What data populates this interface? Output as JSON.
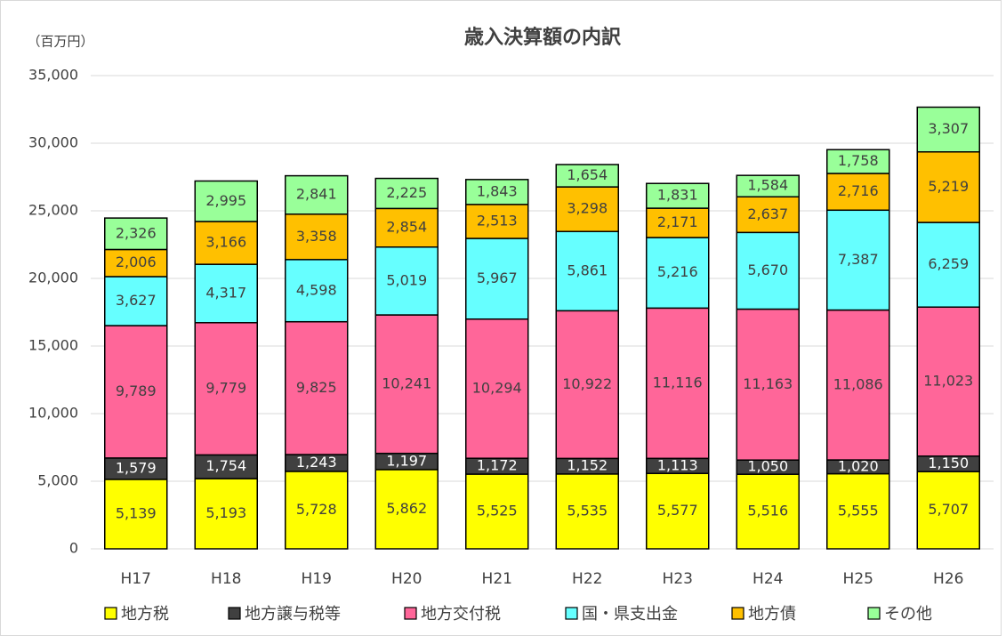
{
  "chart_data": {
    "type": "stacked_bar",
    "title": "歳入決算額の内訳",
    "unit": "（百万円）",
    "categories": [
      "H17",
      "H18",
      "H19",
      "H20",
      "H21",
      "H22",
      "H23",
      "H24",
      "H25",
      "H26"
    ],
    "series": [
      {
        "name": "地方税",
        "color": "#ffff00",
        "values": [
          5139,
          5193,
          5728,
          5862,
          5525,
          5535,
          5577,
          5516,
          5555,
          5707
        ],
        "value_labels": [
          "5,139",
          "5,193",
          "5,728",
          "5,862",
          "5,525",
          "5,535",
          "5,577",
          "5,516",
          "5,555",
          "5,707"
        ]
      },
      {
        "name": "地方譲与税等",
        "color": "#404040",
        "values": [
          1579,
          1754,
          1243,
          1197,
          1172,
          1152,
          1113,
          1050,
          1020,
          1150
        ],
        "value_labels": [
          "1,579",
          "1,754",
          "1,243",
          "1,197",
          "1,172",
          "1,152",
          "1,113",
          "1,050",
          "1,020",
          "1,150"
        ]
      },
      {
        "name": "地方交付税",
        "color": "#ff6699",
        "values": [
          9789,
          9779,
          9825,
          10241,
          10294,
          10922,
          11116,
          11163,
          11086,
          11023
        ],
        "value_labels": [
          "9,789",
          "9,779",
          "9,825",
          "10,241",
          "10,294",
          "10,922",
          "11,116",
          "11,163",
          "11,086",
          "11,023"
        ]
      },
      {
        "name": "国・県支出金",
        "color": "#66ffff",
        "values": [
          3627,
          4317,
          4598,
          5019,
          5967,
          5861,
          5216,
          5670,
          7387,
          6259
        ],
        "value_labels": [
          "3,627",
          "4,317",
          "4,598",
          "5,019",
          "5,967",
          "5,861",
          "5,216",
          "5,670",
          "7,387",
          "6,259"
        ]
      },
      {
        "name": "地方債",
        "color": "#ffc000",
        "values": [
          2006,
          3166,
          3358,
          2854,
          2513,
          3298,
          2171,
          2637,
          2716,
          5219
        ],
        "value_labels": [
          "2,006",
          "3,166",
          "3,358",
          "2,854",
          "2,513",
          "3,298",
          "2,171",
          "2,637",
          "2,716",
          "5,219"
        ]
      },
      {
        "name": "その他",
        "color": "#99ff99",
        "values": [
          2326,
          2995,
          2841,
          2225,
          1843,
          1654,
          1831,
          1584,
          1758,
          3307
        ],
        "value_labels": [
          "2,326",
          "2,995",
          "2,841",
          "2,225",
          "1,843",
          "1,654",
          "1,831",
          "1,584",
          "1,758",
          "3,307"
        ]
      }
    ],
    "ylim": [
      0,
      35000
    ],
    "yticks": [
      0,
      {
        "value": 5000,
        "label": "5,000"
      },
      {
        "value": 10000,
        "label": "10,000"
      },
      {
        "value": 15000,
        "label": "15,000"
      },
      {
        "value": 20000,
        "label": "20,000"
      },
      {
        "value": 25000,
        "label": "25,000"
      },
      {
        "value": 30000,
        "label": "30,000"
      },
      {
        "value": 35000,
        "label": "35,000"
      }
    ],
    "grid": true
  }
}
